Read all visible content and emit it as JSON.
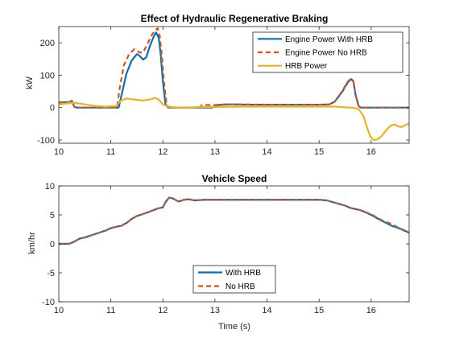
{
  "chart_data": [
    {
      "type": "line",
      "title": "Effect of Hydraulic Regenerative Braking",
      "xlabel": "",
      "ylabel": "kW",
      "xlim": [
        10,
        16.73
      ],
      "ylim": [
        -110,
        250
      ],
      "xticks": [
        10,
        11,
        12,
        13,
        14,
        15,
        16
      ],
      "yticks": [
        -100,
        0,
        100,
        200
      ],
      "grid": false,
      "legend_position": "top-right",
      "series": [
        {
          "name": "Engine Power With HRB",
          "color": "#0072BD",
          "style": "solid",
          "points": [
            [
              10,
              16
            ],
            [
              10.2,
              17
            ],
            [
              10.25,
              21
            ],
            [
              10.3,
              2
            ],
            [
              10.35,
              0
            ],
            [
              11.15,
              0
            ],
            [
              11.2,
              35
            ],
            [
              11.3,
              105
            ],
            [
              11.4,
              145
            ],
            [
              11.5,
              165
            ],
            [
              11.55,
              160
            ],
            [
              11.62,
              148
            ],
            [
              11.68,
              155
            ],
            [
              11.75,
              190
            ],
            [
              11.82,
              218
            ],
            [
              11.87,
              232
            ],
            [
              11.92,
              215
            ],
            [
              11.96,
              160
            ],
            [
              12.0,
              80
            ],
            [
              12.05,
              10
            ],
            [
              12.1,
              0
            ],
            [
              12.95,
              0
            ],
            [
              13.05,
              8
            ],
            [
              13.2,
              10
            ],
            [
              13.4,
              10
            ],
            [
              13.7,
              9
            ],
            [
              14,
              9
            ],
            [
              14.5,
              9
            ],
            [
              15,
              9
            ],
            [
              15.2,
              10
            ],
            [
              15.3,
              18
            ],
            [
              15.45,
              50
            ],
            [
              15.55,
              78
            ],
            [
              15.62,
              88
            ],
            [
              15.66,
              80
            ],
            [
              15.7,
              40
            ],
            [
              15.76,
              5
            ],
            [
              15.8,
              0
            ],
            [
              16.73,
              0
            ]
          ]
        },
        {
          "name": "Engine Power No HRB",
          "color": "#D95319",
          "style": "dashed",
          "points": [
            [
              10,
              16
            ],
            [
              10.2,
              17
            ],
            [
              10.25,
              21
            ],
            [
              10.3,
              2
            ],
            [
              10.35,
              0
            ],
            [
              11.12,
              0
            ],
            [
              11.17,
              60
            ],
            [
              11.25,
              130
            ],
            [
              11.35,
              165
            ],
            [
              11.45,
              180
            ],
            [
              11.55,
              170
            ],
            [
              11.62,
              170
            ],
            [
              11.7,
              195
            ],
            [
              11.78,
              222
            ],
            [
              11.85,
              238
            ],
            [
              11.9,
              245
            ],
            [
              11.94,
              220
            ],
            [
              11.98,
              160
            ],
            [
              12.02,
              80
            ],
            [
              12.07,
              10
            ],
            [
              12.12,
              0
            ],
            [
              12.7,
              0
            ],
            [
              12.75,
              8
            ],
            [
              13,
              8
            ],
            [
              13.3,
              10
            ],
            [
              14,
              9
            ],
            [
              15,
              9
            ],
            [
              15.2,
              10
            ],
            [
              15.3,
              18
            ],
            [
              15.45,
              52
            ],
            [
              15.55,
              80
            ],
            [
              15.62,
              90
            ],
            [
              15.66,
              82
            ],
            [
              15.7,
              40
            ],
            [
              15.76,
              5
            ],
            [
              15.8,
              0
            ],
            [
              16.73,
              0
            ]
          ]
        },
        {
          "name": "HRB Power",
          "color": "#EDB120",
          "style": "solid",
          "points": [
            [
              10,
              10
            ],
            [
              10.1,
              12
            ],
            [
              10.3,
              15
            ],
            [
              10.5,
              10
            ],
            [
              10.7,
              5
            ],
            [
              10.9,
              3
            ],
            [
              11.1,
              5
            ],
            [
              11.2,
              22
            ],
            [
              11.3,
              28
            ],
            [
              11.45,
              25
            ],
            [
              11.6,
              22
            ],
            [
              11.75,
              25
            ],
            [
              11.85,
              30
            ],
            [
              11.92,
              25
            ],
            [
              12.0,
              10
            ],
            [
              12.1,
              3
            ],
            [
              12.3,
              0
            ],
            [
              12.5,
              0
            ],
            [
              12.7,
              2
            ],
            [
              13.0,
              2
            ],
            [
              13.5,
              3
            ],
            [
              14,
              3
            ],
            [
              15,
              3
            ],
            [
              15.3,
              3
            ],
            [
              15.5,
              1
            ],
            [
              15.6,
              0
            ],
            [
              15.75,
              -3
            ],
            [
              15.85,
              -25
            ],
            [
              15.92,
              -60
            ],
            [
              15.98,
              -88
            ],
            [
              16.05,
              -100
            ],
            [
              16.12,
              -98
            ],
            [
              16.2,
              -88
            ],
            [
              16.3,
              -68
            ],
            [
              16.38,
              -55
            ],
            [
              16.45,
              -52
            ],
            [
              16.52,
              -58
            ],
            [
              16.58,
              -60
            ],
            [
              16.65,
              -55
            ],
            [
              16.73,
              -48
            ]
          ]
        }
      ]
    },
    {
      "type": "line",
      "title": "Vehicle Speed",
      "xlabel": "Time (s)",
      "ylabel": "km/hr",
      "xlim": [
        10,
        16.73
      ],
      "ylim": [
        -10,
        10
      ],
      "xticks": [
        10,
        11,
        12,
        13,
        14,
        15,
        16
      ],
      "yticks": [
        -10,
        -5,
        0,
        5,
        10
      ],
      "grid": false,
      "legend_position": "bottom-center",
      "series": [
        {
          "name": "With HRB",
          "color": "#0072BD",
          "style": "solid",
          "points": [
            [
              10,
              0
            ],
            [
              10.2,
              0
            ],
            [
              10.3,
              0.4
            ],
            [
              10.4,
              0.9
            ],
            [
              10.5,
              1.1
            ],
            [
              10.7,
              1.7
            ],
            [
              10.9,
              2.3
            ],
            [
              11.0,
              2.7
            ],
            [
              11.1,
              2.95
            ],
            [
              11.2,
              3.1
            ],
            [
              11.3,
              3.6
            ],
            [
              11.4,
              4.3
            ],
            [
              11.5,
              4.8
            ],
            [
              11.7,
              5.4
            ],
            [
              11.9,
              6.1
            ],
            [
              12.0,
              6.3
            ],
            [
              12.05,
              7.2
            ],
            [
              12.12,
              8.0
            ],
            [
              12.2,
              7.8
            ],
            [
              12.3,
              7.3
            ],
            [
              12.4,
              7.6
            ],
            [
              12.5,
              7.7
            ],
            [
              12.6,
              7.5
            ],
            [
              12.8,
              7.6
            ],
            [
              13,
              7.6
            ],
            [
              14,
              7.6
            ],
            [
              15,
              7.6
            ],
            [
              15.15,
              7.5
            ],
            [
              15.3,
              7.1
            ],
            [
              15.5,
              6.6
            ],
            [
              15.6,
              6.2
            ],
            [
              15.8,
              5.8
            ],
            [
              16.0,
              5.0
            ],
            [
              16.2,
              4.0
            ],
            [
              16.4,
              3.1
            ],
            [
              16.6,
              2.5
            ],
            [
              16.73,
              1.9
            ]
          ]
        },
        {
          "name": "No HRB",
          "color": "#D95319",
          "style": "dashed",
          "points": [
            [
              10,
              0
            ],
            [
              10.2,
              0
            ],
            [
              10.3,
              0.4
            ],
            [
              10.4,
              0.9
            ],
            [
              10.5,
              1.1
            ],
            [
              10.7,
              1.7
            ],
            [
              10.9,
              2.3
            ],
            [
              11.0,
              2.7
            ],
            [
              11.1,
              2.95
            ],
            [
              11.2,
              3.1
            ],
            [
              11.3,
              3.6
            ],
            [
              11.4,
              4.3
            ],
            [
              11.5,
              4.8
            ],
            [
              11.7,
              5.4
            ],
            [
              11.9,
              6.1
            ],
            [
              12.0,
              6.3
            ],
            [
              12.05,
              7.2
            ],
            [
              12.12,
              8.0
            ],
            [
              12.2,
              7.8
            ],
            [
              12.3,
              7.3
            ],
            [
              12.4,
              7.6
            ],
            [
              12.5,
              7.7
            ],
            [
              12.6,
              7.5
            ],
            [
              12.8,
              7.6
            ],
            [
              13,
              7.6
            ],
            [
              14,
              7.6
            ],
            [
              15,
              7.6
            ],
            [
              15.15,
              7.5
            ],
            [
              15.3,
              7.1
            ],
            [
              15.5,
              6.6
            ],
            [
              15.6,
              6.2
            ],
            [
              15.8,
              5.8
            ],
            [
              16.0,
              5.1
            ],
            [
              16.2,
              4.1
            ],
            [
              16.4,
              3.4
            ],
            [
              16.6,
              2.4
            ],
            [
              16.73,
              1.9
            ]
          ]
        }
      ]
    }
  ]
}
